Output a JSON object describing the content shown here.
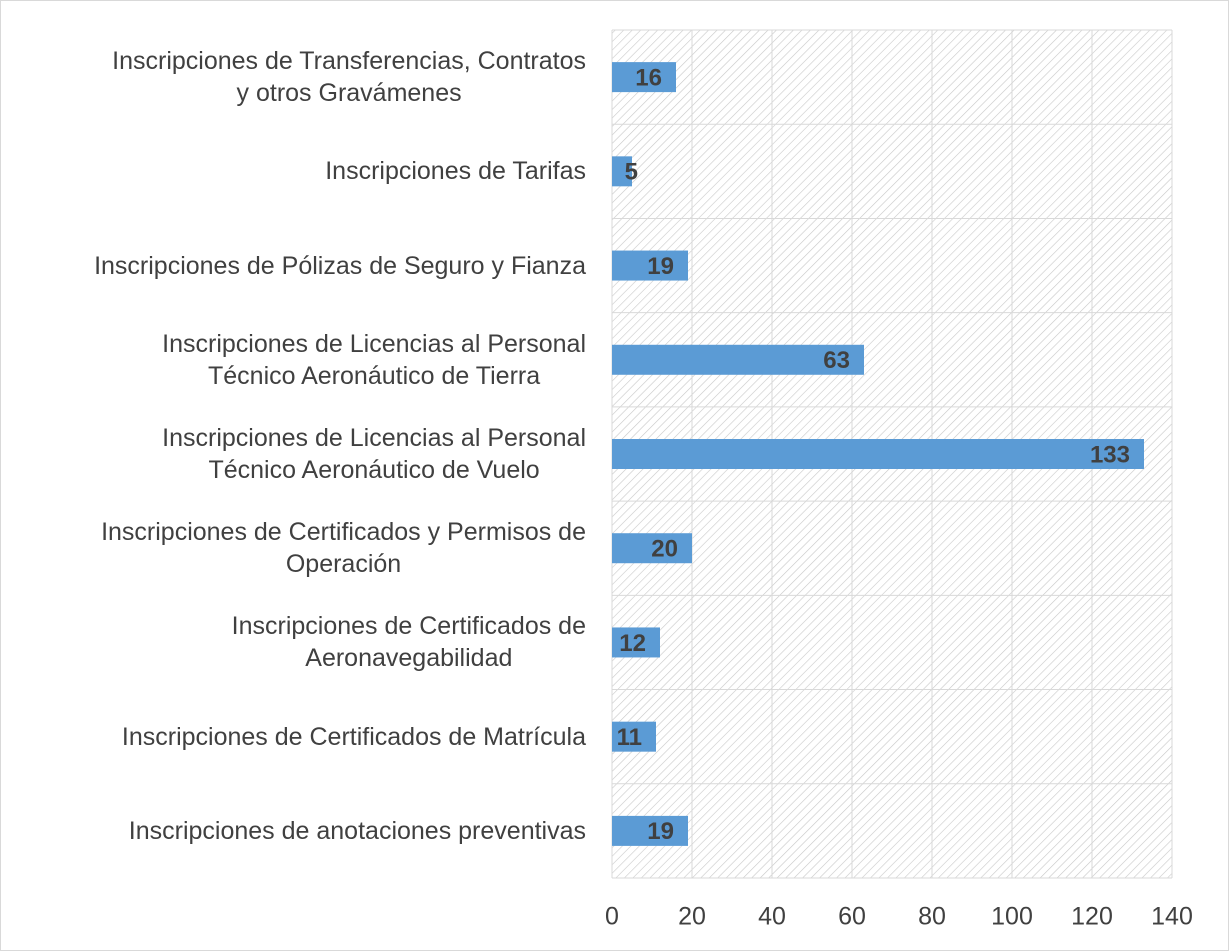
{
  "chart_data": {
    "type": "bar",
    "orientation": "horizontal",
    "categories": [
      "Inscripciones de Transferencias, Contratos\ny otros  Gravámenes",
      "Inscripciones de Tarifas",
      "Inscripciones de Pólizas de Seguro y Fianza",
      "Inscripciones de Licencias al Personal\nTécnico Aeronáutico de Tierra",
      "Inscripciones de Licencias al Personal\nTécnico Aeronáutico de Vuelo",
      "Inscripciones de Certificados y Permisos de\nOperación",
      "Inscripciones de Certificados de\nAeronavegabilidad",
      "Inscripciones de Certificados de Matrícula",
      "Inscripciones de anotaciones preventivas"
    ],
    "values": [
      16,
      5,
      19,
      63,
      133,
      20,
      12,
      11,
      19
    ],
    "color": "#5b9bd5",
    "xlim": [
      0,
      140
    ],
    "xticks": [
      0,
      20,
      40,
      60,
      80,
      100,
      120,
      140
    ],
    "grid": true
  }
}
